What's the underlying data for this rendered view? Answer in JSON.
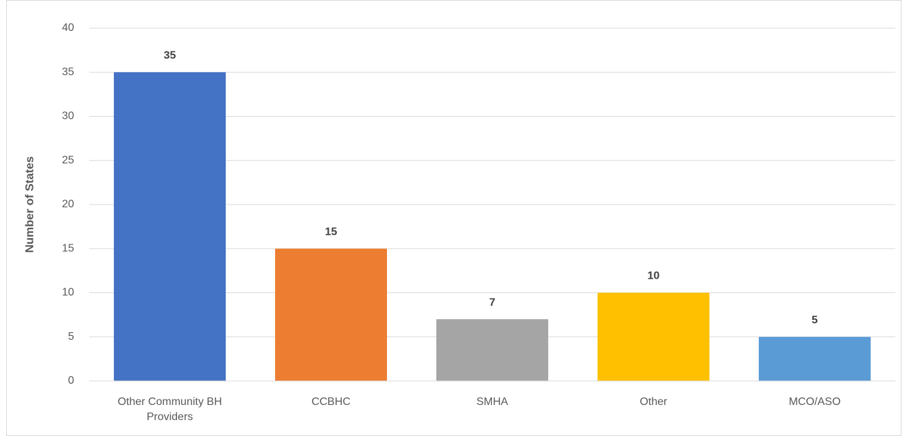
{
  "chart_data": {
    "type": "bar",
    "y_label": "Number of States",
    "categories": [
      "Other Community BH Providers",
      "CCBHC",
      "SMHA",
      "Other",
      "MCO/ASO"
    ],
    "values": [
      35,
      15,
      7,
      10,
      5
    ],
    "colors": [
      "#4472c4",
      "#ed7d31",
      "#a5a5a5",
      "#ffc000",
      "#5b9bd5"
    ],
    "ylim": [
      0,
      40
    ],
    "yticks": [
      0,
      5,
      10,
      15,
      20,
      25,
      30,
      35,
      40
    ],
    "grid": true
  }
}
